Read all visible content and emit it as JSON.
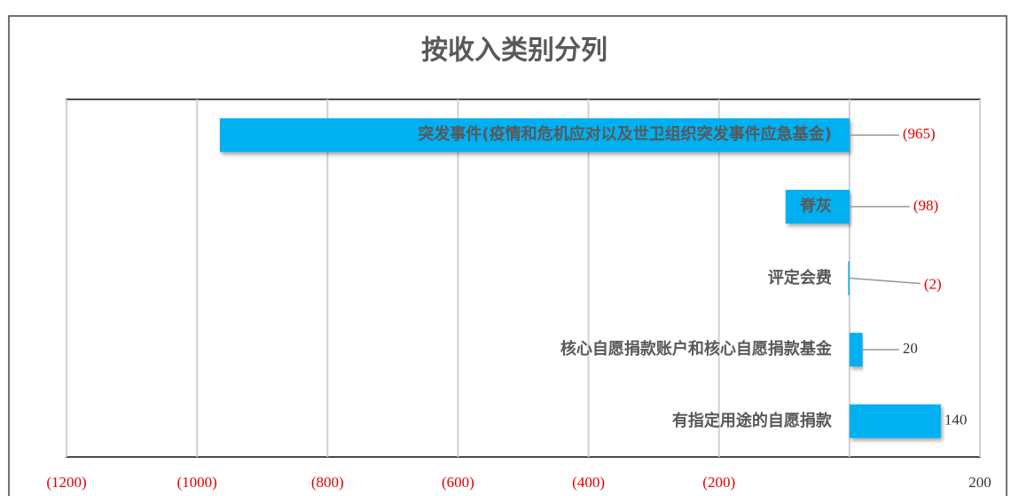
{
  "chart_data": {
    "type": "barh",
    "title": "按收入类别分列",
    "categories": [
      "突发事件(疫情和危机应对以及世卫组织突发事件应急基金)",
      "脊灰",
      "评定会费",
      "核心自愿捐款账户和核心自愿捐款基金",
      "有指定用途的自愿捐款"
    ],
    "values": [
      -965,
      -98,
      -2,
      20,
      140
    ],
    "value_labels": [
      "(965)",
      "(98)",
      "(2)",
      "20",
      "140"
    ],
    "color": "#00b0f0",
    "negative_label_color": "#e00000",
    "label_color": "#333333",
    "xlim": [
      -1200,
      200
    ],
    "xticks": [
      {
        "value": -1200,
        "label": "(1200)"
      },
      {
        "value": -1000,
        "label": "(1000)"
      },
      {
        "value": -800,
        "label": "(800)"
      },
      {
        "value": -600,
        "label": "(600)"
      },
      {
        "value": -400,
        "label": "(400)"
      },
      {
        "value": -200,
        "label": "(200)"
      },
      200
    ],
    "grid": true
  }
}
